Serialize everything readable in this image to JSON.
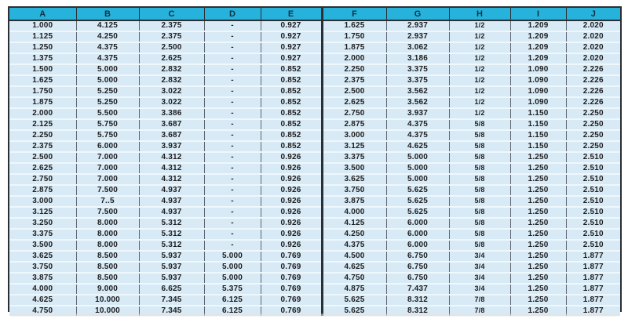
{
  "table": {
    "columns": [
      "A",
      "B",
      "C",
      "D",
      "E",
      "F",
      "G",
      "H",
      "I",
      "J"
    ],
    "fraction_column_index": 7,
    "divider_before_column_index": 5,
    "rows": [
      [
        "1.000",
        "4.125",
        "2.375",
        "-",
        "0.927",
        "1.625",
        "2.937",
        "1/2",
        "1.209",
        "2.020"
      ],
      [
        "1.125",
        "4.250",
        "2.375",
        "-",
        "0.927",
        "1.750",
        "2.937",
        "1/2",
        "1.209",
        "2.020"
      ],
      [
        "1.250",
        "4.375",
        "2.500",
        "-",
        "0.927",
        "1.875",
        "3.062",
        "1/2",
        "1.209",
        "2.020"
      ],
      [
        "1.375",
        "4.375",
        "2.625",
        "-",
        "0.927",
        "2.000",
        "3.186",
        "1/2",
        "1.209",
        "2.020"
      ],
      [
        "1.500",
        "5.000",
        "2.832",
        "-",
        "0.852",
        "2.250",
        "3.375",
        "1/2",
        "1.090",
        "2.226"
      ],
      [
        "1.625",
        "5.000",
        "2.832",
        "-",
        "0.852",
        "2.375",
        "3.375",
        "1/2",
        "1.090",
        "2.226"
      ],
      [
        "1.750",
        "5.250",
        "3.022",
        "-",
        "0.852",
        "2.500",
        "3.562",
        "1/2",
        "1.090",
        "2.226"
      ],
      [
        "1.875",
        "5.250",
        "3.022",
        "-",
        "0.852",
        "2.625",
        "3.562",
        "1/2",
        "1.090",
        "2.226"
      ],
      [
        "2.000",
        "5.500",
        "3.386",
        "-",
        "0.852",
        "2.750",
        "3.937",
        "1/2",
        "1.150",
        "2.250"
      ],
      [
        "2.125",
        "5.750",
        "3.687",
        "-",
        "0.852",
        "2.875",
        "4.375",
        "5/8",
        "1.150",
        "2.250"
      ],
      [
        "2.250",
        "5.750",
        "3.687",
        "-",
        "0.852",
        "3.000",
        "4.375",
        "5/8",
        "1.150",
        "2.250"
      ],
      [
        "2.375",
        "6.000",
        "3.937",
        "-",
        "0.852",
        "3.125",
        "4.625",
        "5/8",
        "1.150",
        "2.250"
      ],
      [
        "2.500",
        "7.000",
        "4.312",
        "-",
        "0.926",
        "3.375",
        "5.000",
        "5/8",
        "1.250",
        "2.510"
      ],
      [
        "2.625",
        "7.000",
        "4.312",
        "-",
        "0.926",
        "3.500",
        "5.000",
        "5/8",
        "1.250",
        "2.510"
      ],
      [
        "2.750",
        "7.000",
        "4.312",
        "-",
        "0.926",
        "3.625",
        "5.000",
        "5/8",
        "1.250",
        "2.510"
      ],
      [
        "2.875",
        "7.500",
        "4.937",
        "-",
        "0.926",
        "3.750",
        "5.625",
        "5/8",
        "1.250",
        "2.510"
      ],
      [
        "3.000",
        "7..5",
        "4.937",
        "-",
        "0.926",
        "3.875",
        "5.625",
        "5/8",
        "1.250",
        "2.510"
      ],
      [
        "3.125",
        "7.500",
        "4.937",
        "-",
        "0.926",
        "4.000",
        "5.625",
        "5/8",
        "1.250",
        "2.510"
      ],
      [
        "3.250",
        "8.000",
        "5.312",
        "-",
        "0.926",
        "4.125",
        "6.000",
        "5/8",
        "1.250",
        "2.510"
      ],
      [
        "3.375",
        "8.000",
        "5.312",
        "-",
        "0.926",
        "4.250",
        "6.000",
        "5/8",
        "1.250",
        "2.510"
      ],
      [
        "3.500",
        "8.000",
        "5.312",
        "-",
        "0.926",
        "4.375",
        "6.000",
        "5/8",
        "1.250",
        "2.510"
      ],
      [
        "3.625",
        "8.500",
        "5.937",
        "5.000",
        "0.769",
        "4.500",
        "6.750",
        "3/4",
        "1.250",
        "1.877"
      ],
      [
        "3.750",
        "8.500",
        "5.937",
        "5.000",
        "0.769",
        "4.625",
        "6.750",
        "3/4",
        "1.250",
        "1.877"
      ],
      [
        "3.875",
        "8.500",
        "5.937",
        "5.000",
        "0.769",
        "4.750",
        "6.750",
        "3/4",
        "1.250",
        "1.877"
      ],
      [
        "4.000",
        "9.000",
        "6.625",
        "5.375",
        "0.769",
        "4.875",
        "7.437",
        "3/4",
        "1.250",
        "1.877"
      ],
      [
        "4.625",
        "10.000",
        "7.345",
        "6.125",
        "0.769",
        "5.625",
        "8.312",
        "7/8",
        "1.250",
        "1.877"
      ],
      [
        "4.750",
        "10.000",
        "7.345",
        "6.125",
        "0.769",
        "5.625",
        "8.312",
        "7/8",
        "1.250",
        "1.877"
      ]
    ]
  },
  "colors": {
    "header_bg": "#27b2dc",
    "header_text": "#16303f",
    "body_bg": "#d8eaf5",
    "body_text": "#1d1d1f",
    "grid_horizontal": "#eef7fc",
    "grid_vertical": "#5c6670",
    "frame": "#2a2f33"
  }
}
